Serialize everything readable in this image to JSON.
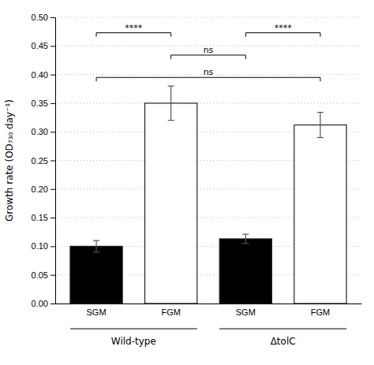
{
  "chart_data": {
    "type": "bar",
    "categories": [
      "SGM",
      "FGM",
      "SGM",
      "FGM"
    ],
    "values": [
      0.1,
      0.35,
      0.113,
      0.312
    ],
    "errors": [
      0.01,
      0.03,
      0.008,
      0.022
    ],
    "colors": [
      "#000000",
      "#ffffff",
      "#000000",
      "#ffffff"
    ],
    "ylabel": "Growth rate (OD₇₃₀ day⁻¹)",
    "ylim": [
      0,
      0.5
    ],
    "yticks": [
      {
        "value": 0,
        "label": "0.00"
      },
      0.05,
      {
        "value": 0.1,
        "label": "0.10"
      },
      0.15,
      {
        "value": 0.2,
        "label": "0.20"
      },
      0.25,
      {
        "value": 0.3,
        "label": "0.30"
      },
      0.35,
      {
        "value": 0.4,
        "label": "0.40"
      },
      0.45,
      {
        "value": 0.5,
        "label": "0.50"
      }
    ],
    "grid": true,
    "brackets": [
      {
        "from": 0,
        "to": 1,
        "y": 0.473,
        "label": "****"
      },
      {
        "from": 0,
        "to": 3,
        "y": 0.395,
        "label": "ns"
      },
      {
        "from": 2,
        "to": 3,
        "y": 0.473,
        "label": "****"
      },
      {
        "from": 1,
        "to": 2,
        "y": 0.434,
        "label": "ns"
      }
    ],
    "groups": [
      {
        "from": 0,
        "to": 1,
        "label": "Wild-type"
      },
      {
        "from": 2,
        "to": 3,
        "label": "ΔtolC"
      }
    ]
  }
}
